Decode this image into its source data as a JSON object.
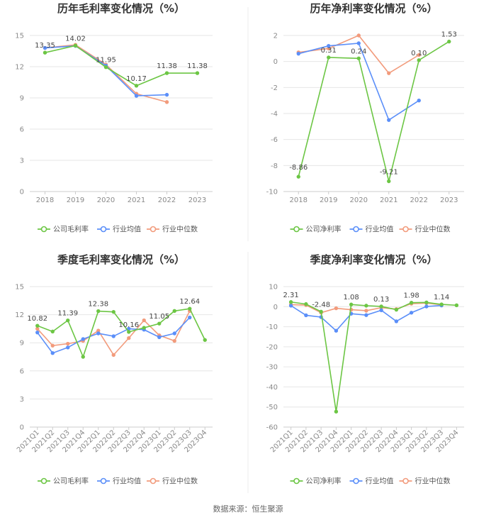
{
  "source_note": "数据来源：恒生聚源",
  "colors": {
    "company": "#6cc644",
    "avg": "#5b8ff9",
    "median": "#f29b7c",
    "grid": "#e6e6e6",
    "divider": "#ececec"
  },
  "chart_data": [
    {
      "type": "line",
      "title": "历年毛利率变化情况（%）",
      "categories": [
        "2018",
        "2019",
        "2020",
        "2021",
        "2022",
        "2023"
      ],
      "ylim": [
        0,
        15
      ],
      "yticks": [
        0,
        3,
        6,
        9,
        12,
        15
      ],
      "rotate_x": false,
      "series": [
        {
          "name": "公司毛利率",
          "key": "company",
          "values": [
            13.35,
            14.02,
            11.95,
            10.17,
            11.38,
            11.38
          ]
        },
        {
          "name": "行业均值",
          "key": "avg",
          "values": [
            13.8,
            14.0,
            12.1,
            9.2,
            9.3,
            null
          ]
        },
        {
          "name": "行业中位数",
          "key": "median",
          "values": [
            13.8,
            14.1,
            12.2,
            9.4,
            8.6,
            null
          ]
        }
      ],
      "labels": [
        {
          "i": 0,
          "text": "13.35"
        },
        {
          "i": 1,
          "text": "14.02"
        },
        {
          "i": 2,
          "text": "11.95"
        },
        {
          "i": 3,
          "text": "10.17"
        },
        {
          "i": 4,
          "text": "11.38"
        },
        {
          "i": 5,
          "text": "11.38"
        }
      ],
      "legend": [
        "公司毛利率",
        "行业均值",
        "行业中位数"
      ]
    },
    {
      "type": "line",
      "title": "历年净利率变化情况（%）",
      "categories": [
        "2018",
        "2019",
        "2020",
        "2021",
        "2022",
        "2023"
      ],
      "ylim": [
        -10,
        2
      ],
      "yticks": [
        -10,
        -8,
        -6,
        -4,
        -2,
        0,
        2
      ],
      "rotate_x": false,
      "series": [
        {
          "name": "公司净利率",
          "key": "company",
          "values": [
            -8.86,
            0.31,
            0.24,
            -9.21,
            0.1,
            1.53
          ]
        },
        {
          "name": "行业均值",
          "key": "avg",
          "values": [
            0.6,
            1.2,
            1.4,
            -4.5,
            -3.0,
            null
          ]
        },
        {
          "name": "行业中位数",
          "key": "median",
          "values": [
            0.7,
            1.0,
            2.0,
            -0.9,
            0.5,
            null
          ]
        }
      ],
      "labels": [
        {
          "i": 0,
          "text": "-8.86"
        },
        {
          "i": 1,
          "text": "0.31"
        },
        {
          "i": 2,
          "text": "0.24"
        },
        {
          "i": 3,
          "text": "-9.21"
        },
        {
          "i": 4,
          "text": "0.10"
        },
        {
          "i": 5,
          "text": "1.53"
        }
      ],
      "legend": [
        "公司净利率",
        "行业均值",
        "行业中位数"
      ]
    },
    {
      "type": "line",
      "title": "季度毛利率变化情况（%）",
      "categories": [
        "2021Q1",
        "2021Q2",
        "2021Q3",
        "2021Q4",
        "2022Q1",
        "2022Q2",
        "2022Q3",
        "2022Q4",
        "2023Q1",
        "2023Q2",
        "2023Q3",
        "2023Q4"
      ],
      "ylim": [
        0,
        15
      ],
      "yticks": [
        0,
        3,
        6,
        9,
        12,
        15
      ],
      "rotate_x": true,
      "series": [
        {
          "name": "公司毛利率",
          "key": "company",
          "values": [
            10.82,
            10.2,
            11.39,
            7.5,
            12.38,
            12.3,
            10.16,
            10.6,
            11.05,
            12.4,
            12.64,
            9.3
          ]
        },
        {
          "name": "行业均值",
          "key": "avg",
          "values": [
            10.1,
            7.9,
            8.5,
            9.4,
            10.0,
            9.7,
            10.5,
            10.4,
            9.6,
            10.0,
            11.7,
            null
          ]
        },
        {
          "name": "行业中位数",
          "key": "median",
          "values": [
            10.5,
            8.7,
            8.9,
            9.2,
            10.3,
            7.7,
            9.5,
            11.4,
            9.8,
            9.2,
            12.4,
            null
          ]
        }
      ],
      "labels": [
        {
          "i": 0,
          "text": "10.82"
        },
        {
          "i": 2,
          "text": "11.39"
        },
        {
          "i": 4,
          "text": "12.38"
        },
        {
          "i": 6,
          "text": "10.16"
        },
        {
          "i": 8,
          "text": "11.05"
        },
        {
          "i": 10,
          "text": "12.64"
        }
      ],
      "legend": [
        "公司毛利率",
        "行业均值",
        "行业中位数"
      ]
    },
    {
      "type": "line",
      "title": "季度净利率变化情况（%）",
      "categories": [
        "2021Q1",
        "2021Q2",
        "2021Q3",
        "2021Q4",
        "2022Q1",
        "2022Q2",
        "2022Q3",
        "2022Q4",
        "2023Q1",
        "2023Q2",
        "2023Q3",
        "2023Q4"
      ],
      "ylim": [
        -60,
        10
      ],
      "yticks": [
        -60,
        -50,
        -40,
        -30,
        -20,
        -10,
        0,
        10
      ],
      "rotate_x": true,
      "series": [
        {
          "name": "公司净利率",
          "key": "company",
          "values": [
            2.31,
            1.3,
            -2.48,
            -52.3,
            1.08,
            0.5,
            0.13,
            -1.5,
            1.98,
            2.1,
            1.14,
            0.7
          ]
        },
        {
          "name": "行业均值",
          "key": "avg",
          "values": [
            0.5,
            -4.3,
            -5.2,
            -12.0,
            -3.5,
            -4.2,
            -1.8,
            -7.3,
            -3.0,
            0.1,
            0.6,
            null
          ]
        },
        {
          "name": "行业中位数",
          "key": "median",
          "values": [
            1.0,
            0.8,
            -3.0,
            -0.8,
            -1.5,
            -2.0,
            -0.5,
            -1.2,
            1.5,
            1.8,
            0.9,
            null
          ]
        }
      ],
      "labels": [
        {
          "i": 0,
          "text": "2.31"
        },
        {
          "i": 2,
          "text": "-2.48"
        },
        {
          "i": 4,
          "text": "1.08"
        },
        {
          "i": 6,
          "text": "0.13"
        },
        {
          "i": 8,
          "text": "1.98"
        },
        {
          "i": 10,
          "text": "1.14"
        }
      ],
      "legend": [
        "公司净利率",
        "行业均值",
        "行业中位数"
      ]
    }
  ]
}
